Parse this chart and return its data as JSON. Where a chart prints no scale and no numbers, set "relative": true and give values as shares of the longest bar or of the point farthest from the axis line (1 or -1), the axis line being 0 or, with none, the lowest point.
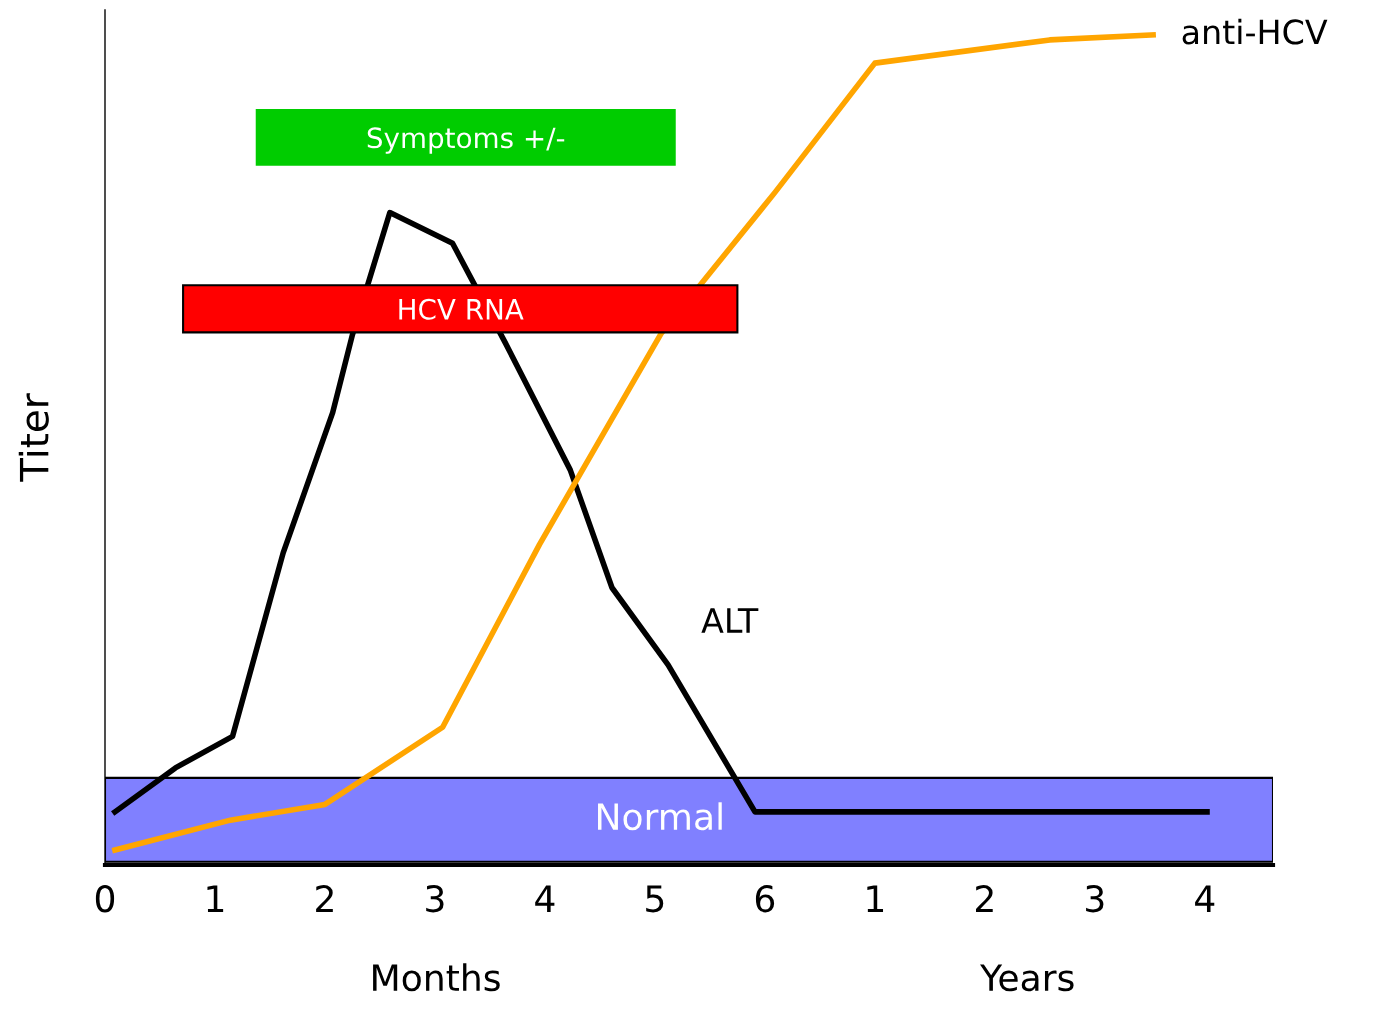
{
  "chart_data": {
    "type": "line",
    "relative": true,
    "ylabel": "Titer",
    "xlabel": "Months",
    "x": [
      0.09,
      0.64,
      1.16,
      1.62,
      2.07,
      2.25,
      2.59,
      3.16,
      3.64,
      4.23,
      4.61,
      5.12,
      5.91,
      10.02
    ],
    "series": [
      {
        "name": "ALT",
        "color": "#000000",
        "values": [
          0.064,
          0.117,
          0.155,
          0.376,
          0.545,
          0.639,
          0.786,
          0.749,
          0.629,
          0.476,
          0.334,
          0.241,
          0.064,
          0.064
        ]
      },
      {
        "name": "anti-HCV",
        "color": "#ffa500",
        "x": [
          0.09,
          1.14,
          2.0,
          3.07,
          3.95,
          5.06,
          6.09,
          7.0,
          8.59,
          9.53
        ],
        "values": [
          0.018,
          0.054,
          0.073,
          0.166,
          0.386,
          0.641,
          0.81,
          0.966,
          0.994,
          1.0
        ]
      }
    ],
    "xlim": [
      0,
      10.62
    ],
    "xticks": [
      0,
      1,
      2,
      3,
      4,
      5,
      6
    ],
    "x2lim": [
      -6,
      4.62
    ],
    "x2ticks": [
      1,
      2,
      3,
      4
    ],
    "x2label": "Years",
    "bands": [
      {
        "axis": "y",
        "from": 0.004,
        "to": 0.105,
        "label": "Normal",
        "color": "#8080ff"
      },
      {
        "axis": "x",
        "from": 0.71,
        "to": 5.75,
        "label": "HCV RNA",
        "color": "#ff0000"
      },
      {
        "axis": "x",
        "from": 1.38,
        "to": 5.18,
        "label": "Symptoms +/-",
        "color": "#00cc00"
      }
    ],
    "legend": false,
    "grid": false,
    "marker": "none",
    "line_style": "solid"
  }
}
